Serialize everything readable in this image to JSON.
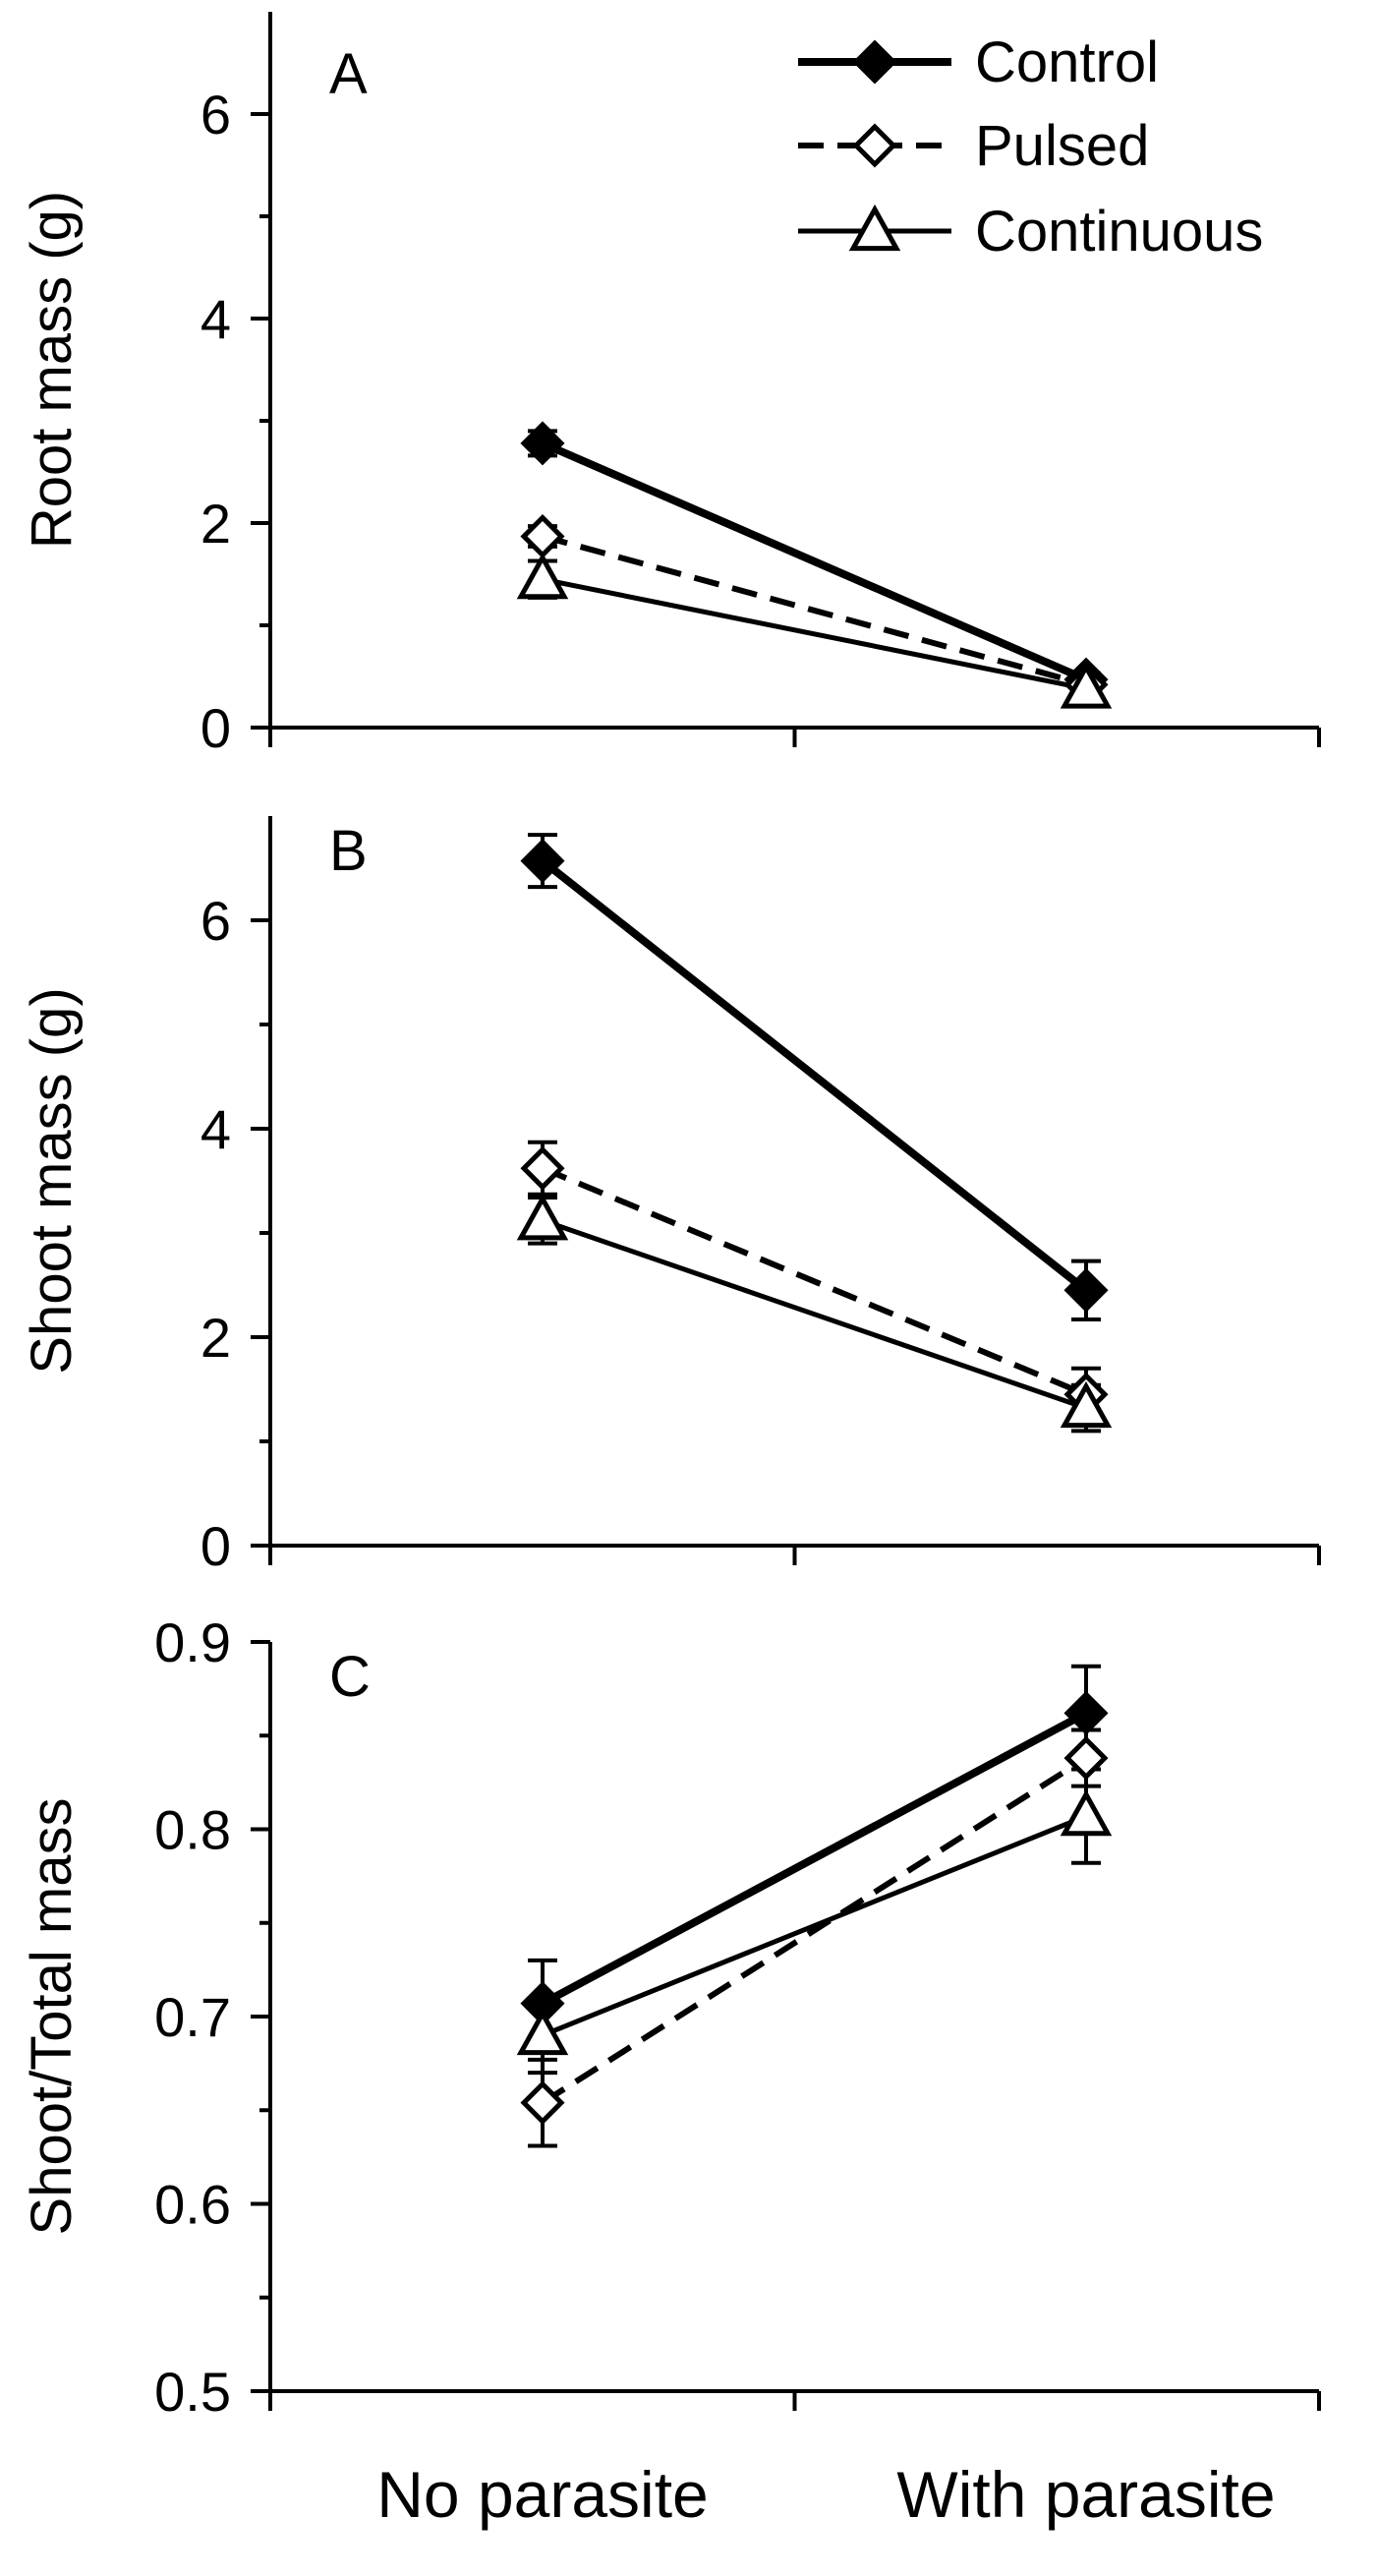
{
  "chart_data": [
    {
      "type": "line",
      "panel": "A",
      "ylabel": "Root mass (g)",
      "ylim": [
        0,
        7
      ],
      "yticks": [
        0,
        2,
        4,
        6
      ],
      "ytick_labels": [
        "0",
        "2",
        "4",
        "6"
      ],
      "categories": [
        "No parasite",
        "With parasite"
      ],
      "series": [
        {
          "name": "Control",
          "marker": "filled-diamond",
          "line": "solid-thick",
          "values": [
            2.78,
            0.47
          ],
          "errors": [
            0.12,
            0.06
          ]
        },
        {
          "name": "Pulsed",
          "marker": "open-diamond",
          "line": "dashed",
          "values": [
            1.87,
            0.42
          ],
          "errors": [
            0.1,
            0.05
          ]
        },
        {
          "name": "Continuous",
          "marker": "open-triangle",
          "line": "solid-thin",
          "values": [
            1.45,
            0.38
          ],
          "errors": [
            0.18,
            0.05
          ]
        }
      ],
      "legend": {
        "position": "top-right",
        "entries": [
          "Control",
          "Pulsed",
          "Continuous"
        ]
      }
    },
    {
      "type": "line",
      "panel": "B",
      "ylabel": "Shoot mass (g)",
      "ylim": [
        0,
        7
      ],
      "yticks": [
        0,
        2,
        4,
        6
      ],
      "ytick_labels": [
        "0",
        "2",
        "4",
        "6"
      ],
      "categories": [
        "No parasite",
        "With parasite"
      ],
      "series": [
        {
          "name": "Control",
          "marker": "filled-diamond",
          "line": "solid-thick",
          "values": [
            6.57,
            2.45
          ],
          "errors": [
            0.25,
            0.28
          ]
        },
        {
          "name": "Pulsed",
          "marker": "open-diamond",
          "line": "dashed",
          "values": [
            3.62,
            1.45
          ],
          "errors": [
            0.25,
            0.25
          ]
        },
        {
          "name": "Continuous",
          "marker": "open-triangle",
          "line": "solid-thin",
          "values": [
            3.12,
            1.32
          ],
          "errors": [
            0.22,
            0.22
          ]
        }
      ]
    },
    {
      "type": "line",
      "panel": "C",
      "ylabel": "Shoot/Total mass",
      "ylim": [
        0.5,
        0.9
      ],
      "yticks": [
        0.5,
        0.6,
        0.7,
        0.8,
        0.9
      ],
      "ytick_labels": [
        "0.5",
        "0.6",
        "0.7",
        "0.8",
        "0.9"
      ],
      "categories": [
        "No parasite",
        "With parasite"
      ],
      "xlabel_categories": [
        "No parasite",
        "With parasite"
      ],
      "series": [
        {
          "name": "Control",
          "marker": "filled-diamond",
          "line": "solid-thick",
          "values": [
            0.707,
            0.862
          ],
          "errors": [
            0.023,
            0.025
          ]
        },
        {
          "name": "Pulsed",
          "marker": "open-diamond",
          "line": "dashed",
          "values": [
            0.654,
            0.838
          ],
          "errors": [
            0.023,
            0.015
          ]
        },
        {
          "name": "Continuous",
          "marker": "open-triangle",
          "line": "solid-thin",
          "values": [
            0.69,
            0.807
          ],
          "errors": [
            0.02,
            0.025
          ]
        }
      ]
    }
  ]
}
